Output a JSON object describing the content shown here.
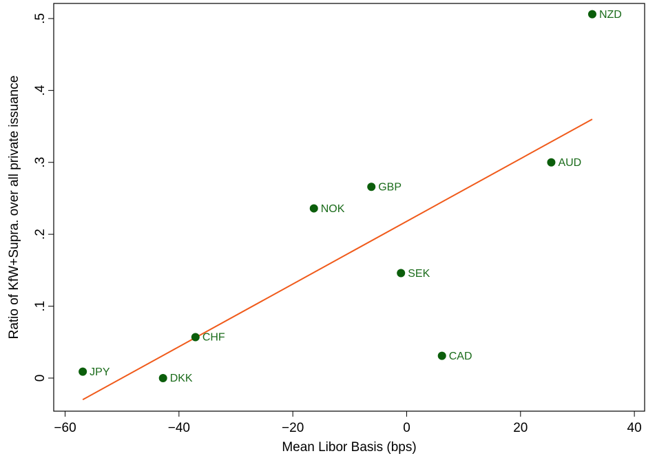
{
  "chart_data": {
    "type": "scatter",
    "x_label": "Mean Libor Basis (bps)",
    "y_label": "Ratio of KfW+Supra. over all private issuance",
    "xlim": [
      -62,
      41.8
    ],
    "ylim": [
      -0.046,
      0.521
    ],
    "xticks": [
      {
        "value": -60,
        "label": "−60"
      },
      {
        "value": -40,
        "label": "−40"
      },
      {
        "value": -20,
        "label": "−20"
      },
      0,
      20,
      40
    ],
    "yticks": [
      0,
      {
        "value": 0.1,
        "label": ".1"
      },
      {
        "value": 0.2,
        "label": ".2"
      },
      {
        "value": 0.3,
        "label": ".3"
      },
      {
        "value": 0.4,
        "label": ".4"
      },
      {
        "value": 0.5,
        "label": ".5"
      }
    ],
    "series": [
      {
        "color": "#0b5e0b",
        "labels": [
          "JPY",
          "DKK",
          "CHF",
          "NOK",
          "GBP",
          "SEK",
          "CAD",
          "AUD",
          "NZD"
        ],
        "x": [
          -56.9,
          -42.8,
          -37.1,
          -16.3,
          -6.2,
          -1.0,
          6.2,
          25.4,
          32.6
        ],
        "values": [
          0.009,
          0,
          0.057,
          0.236,
          0.266,
          0.146,
          0.031,
          0.3,
          0.506
        ]
      }
    ],
    "fit": {
      "color": "#f05a1a",
      "x": [
        -56.9,
        32.6
      ],
      "values": [
        -0.03,
        0.36
      ]
    }
  }
}
